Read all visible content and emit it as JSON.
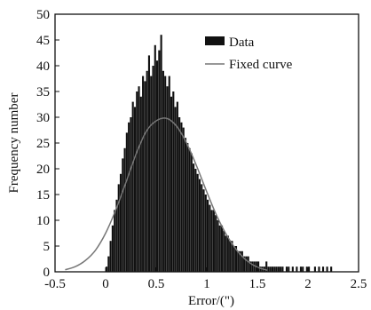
{
  "chart_data": {
    "type": "bar",
    "title": "",
    "xlabel": "Error/(\")",
    "ylabel": "Frequency number",
    "xlim": [
      -0.5,
      2.5
    ],
    "ylim": [
      0,
      50
    ],
    "xticks": [
      "-0.5",
      "0",
      "0.5",
      "1",
      "1.5",
      "2",
      "2.5"
    ],
    "yticks": [
      "0",
      "5",
      "10",
      "15",
      "20",
      "25",
      "30",
      "35",
      "40",
      "45",
      "50"
    ],
    "grid": false,
    "legend_position": "top-right",
    "series": [
      {
        "name": "Data",
        "type": "histogram",
        "color": "#111111",
        "x": [
          0.0,
          0.02,
          0.04,
          0.06,
          0.08,
          0.1,
          0.12,
          0.14,
          0.16,
          0.18,
          0.2,
          0.22,
          0.24,
          0.26,
          0.28,
          0.3,
          0.32,
          0.34,
          0.36,
          0.38,
          0.4,
          0.42,
          0.44,
          0.46,
          0.48,
          0.5,
          0.52,
          0.54,
          0.56,
          0.58,
          0.6,
          0.62,
          0.64,
          0.66,
          0.68,
          0.7,
          0.72,
          0.74,
          0.76,
          0.78,
          0.8,
          0.82,
          0.84,
          0.86,
          0.88,
          0.9,
          0.92,
          0.94,
          0.96,
          0.98,
          1.0,
          1.02,
          1.04,
          1.06,
          1.08,
          1.1,
          1.12,
          1.14,
          1.16,
          1.18,
          1.2,
          1.22,
          1.24,
          1.26,
          1.28,
          1.3,
          1.32,
          1.34,
          1.36,
          1.38,
          1.4,
          1.42,
          1.44,
          1.46,
          1.48,
          1.5,
          1.52,
          1.54,
          1.56,
          1.58,
          1.6,
          1.62,
          1.64,
          1.66,
          1.68,
          1.7,
          1.72,
          1.74,
          1.76,
          1.78,
          1.8,
          1.82,
          1.84,
          1.86,
          1.88,
          1.9,
          1.92,
          1.94,
          1.96,
          1.98,
          2.0,
          2.02,
          2.04,
          2.06,
          2.08,
          2.1,
          2.12,
          2.14,
          2.16,
          2.18,
          2.2,
          2.22,
          2.24
        ],
        "values": [
          1,
          3,
          6,
          9,
          12,
          14,
          17,
          19,
          22,
          24,
          27,
          29,
          30,
          33,
          32,
          35,
          36,
          34,
          38,
          37,
          39,
          42,
          38,
          40,
          44,
          41,
          43,
          46,
          39,
          38,
          36,
          38,
          34,
          35,
          32,
          33,
          30,
          29,
          28,
          26,
          25,
          24,
          23,
          21,
          20,
          19,
          18,
          17,
          16,
          15,
          14,
          13,
          12,
          12,
          11,
          10,
          9,
          9,
          8,
          7,
          7,
          6,
          6,
          5,
          5,
          4,
          4,
          4,
          3,
          3,
          3,
          2,
          2,
          2,
          2,
          2,
          1,
          1,
          1,
          2,
          1,
          1,
          1,
          1,
          1,
          1,
          1,
          1,
          0,
          1,
          1,
          0,
          1,
          0,
          1,
          0,
          1,
          1,
          0,
          1,
          1,
          0,
          0,
          1,
          0,
          1,
          0,
          1,
          0,
          1,
          0,
          1,
          0
        ]
      },
      {
        "name": "Fixed curve",
        "type": "line",
        "color": "#777777",
        "x": [
          -0.4,
          -0.3,
          -0.2,
          -0.1,
          0.0,
          0.1,
          0.2,
          0.3,
          0.4,
          0.5,
          0.6,
          0.7,
          0.8,
          0.9,
          1.0,
          1.1,
          1.2,
          1.3,
          1.4,
          1.5,
          1.6
        ],
        "values": [
          0.4,
          1.0,
          2.2,
          4.2,
          7.5,
          12.0,
          17.3,
          22.8,
          27.2,
          29.3,
          29.8,
          28.3,
          25.0,
          20.5,
          15.5,
          10.8,
          7.0,
          4.1,
          2.1,
          0.9,
          0.3
        ]
      }
    ]
  }
}
